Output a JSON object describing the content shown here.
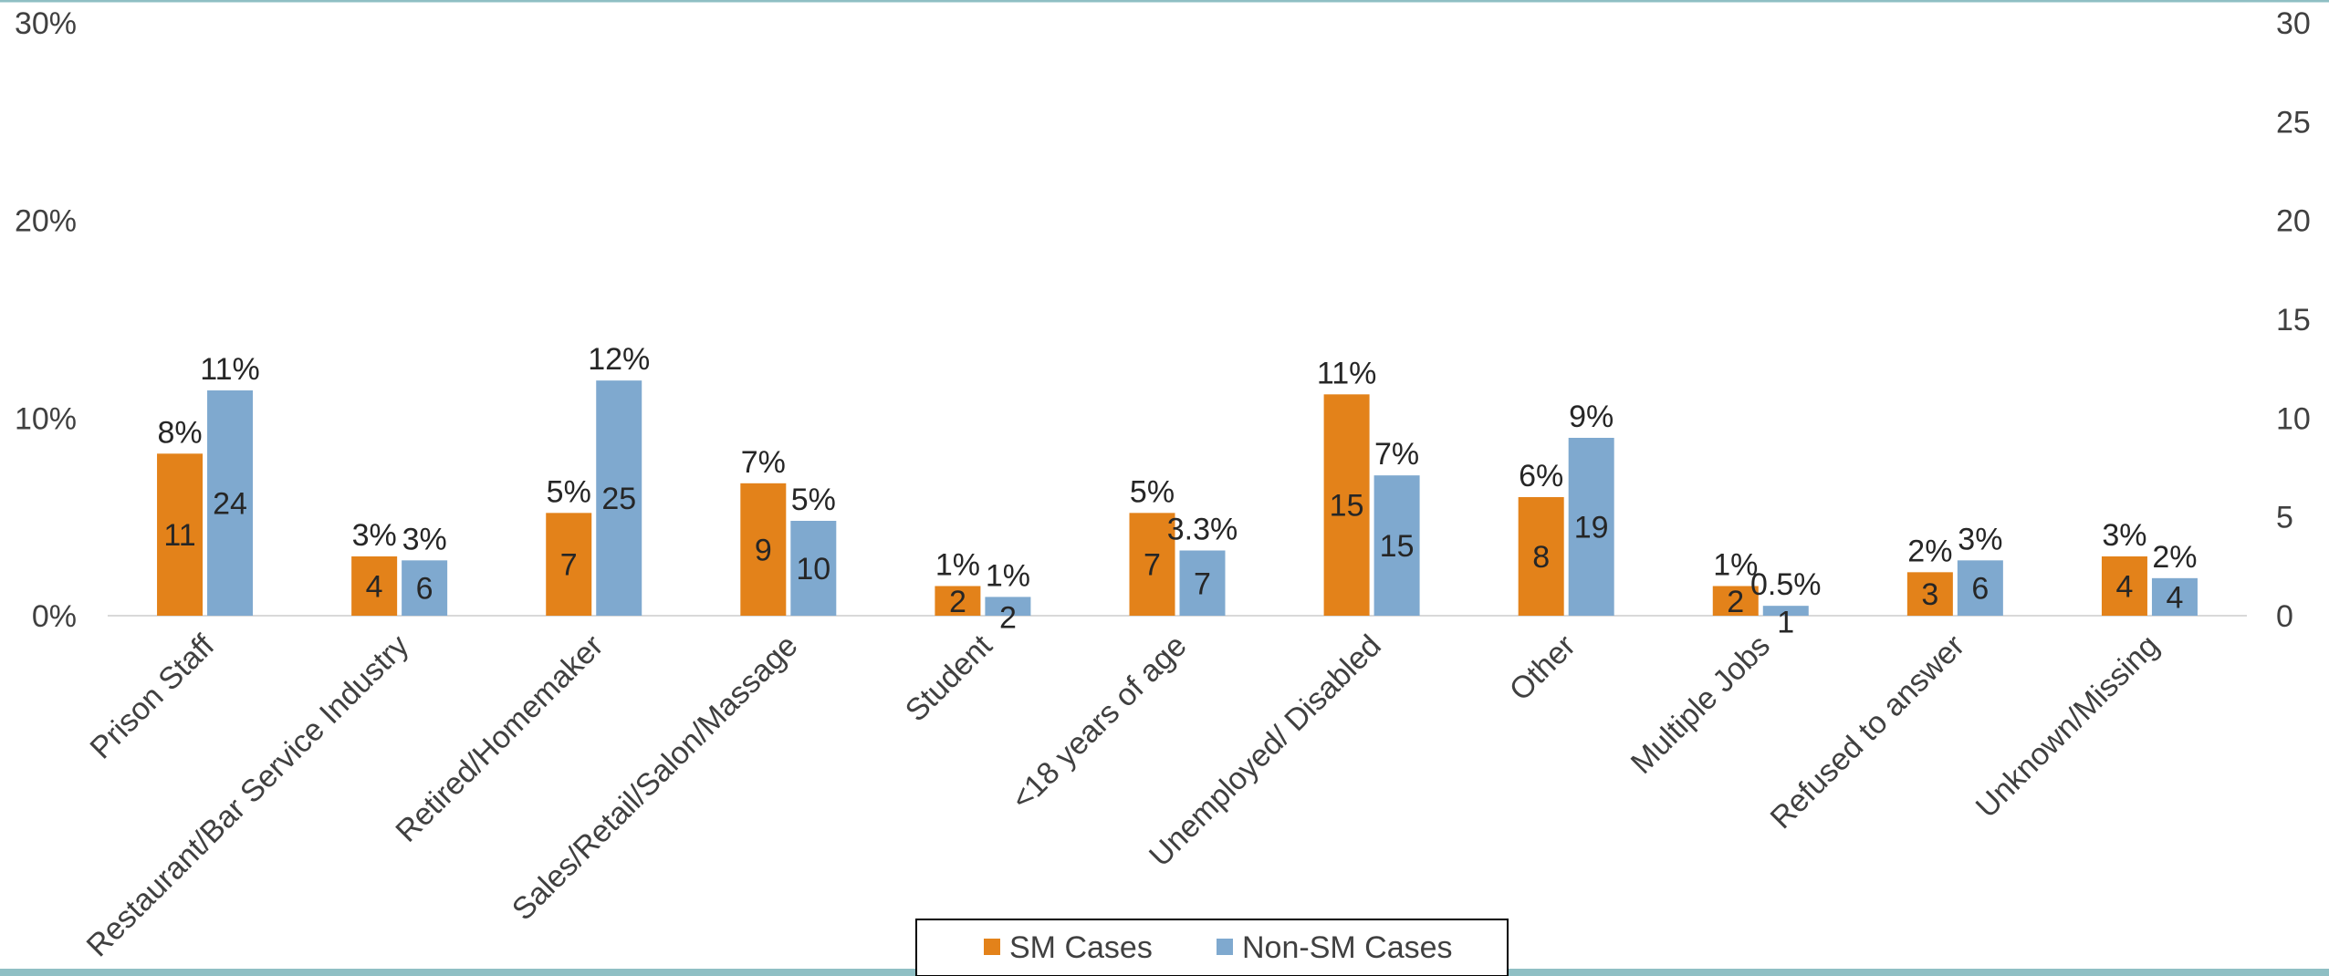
{
  "chart_data": {
    "type": "bar",
    "title": "",
    "categories": [
      "Prison Staff",
      "Restaurant/Bar Service Industry",
      "Retired/Homemaker",
      "Sales/Retail/Salon/Massage",
      "Student",
      "<18 years of age",
      "Unemployed/ Disabled",
      "Other",
      "Multiple Jobs",
      "Refused to answer",
      "Unknown/Missing"
    ],
    "series": [
      {
        "name": "SM Cases",
        "color": "#E3821A",
        "values": [
          8.2,
          3.0,
          5.2,
          6.7,
          1.5,
          5.2,
          11.2,
          6.0,
          1.5,
          2.2,
          3.0
        ],
        "percent_labels": [
          "8%",
          "3%",
          "5%",
          "7%",
          "1%",
          "5%",
          "11%",
          "6%",
          "1%",
          "2%",
          "3%"
        ],
        "counts": [
          "11",
          "4",
          "7",
          "9",
          "2",
          "7",
          "15",
          "8",
          "2",
          "3",
          "4"
        ]
      },
      {
        "name": "Non-SM Cases",
        "color": "#7FA9CF",
        "values": [
          11.4,
          2.8,
          11.9,
          4.8,
          0.95,
          3.3,
          7.1,
          9.0,
          0.5,
          2.8,
          1.9
        ],
        "percent_labels": [
          "11%",
          "3%",
          "12%",
          "5%",
          "1%",
          "3.3%",
          "7%",
          "9%",
          "0.5%",
          "3%",
          "2%"
        ],
        "counts": [
          "24",
          "6",
          "25",
          "10",
          "2",
          "7",
          "15",
          "19",
          "1",
          "6",
          "4"
        ]
      }
    ],
    "y_left": {
      "ticks": [
        0,
        10,
        20,
        30
      ],
      "tick_labels": [
        "0%",
        "10%",
        "20%",
        "30%"
      ],
      "ylim": [
        0,
        30
      ]
    },
    "y_right": {
      "ticks": [
        0,
        5,
        10,
        15,
        20,
        25,
        30
      ],
      "tick_labels": [
        "0",
        "5",
        "10",
        "15",
        "20",
        "25",
        "30"
      ],
      "ylim": [
        0,
        30
      ]
    },
    "xlabel": "",
    "ylabel": "",
    "grid": false,
    "legend_position": "bottom-center"
  },
  "frame": {
    "top_border_color": "#8FBFC4",
    "bottom_border_color": "#8FBFC4"
  }
}
